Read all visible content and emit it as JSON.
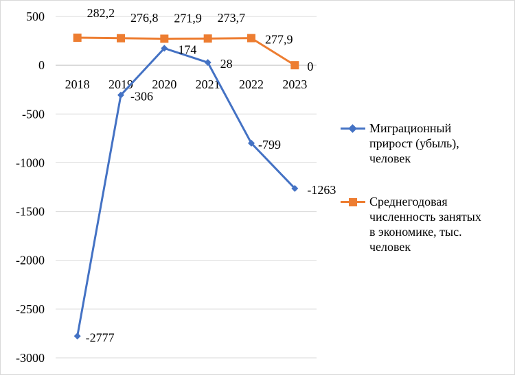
{
  "chart_data": {
    "type": "line",
    "categories": [
      "2018",
      "2019",
      "2020",
      "2021",
      "2022",
      "2023"
    ],
    "ylim": [
      -3000,
      500
    ],
    "yticks": [
      500,
      0,
      -500,
      -1000,
      -1500,
      -2000,
      -2500,
      -3000
    ],
    "ytick_labels": [
      "500",
      "0",
      "-500",
      "-1000",
      "-1500",
      "-2000",
      "-2500",
      "-3000"
    ],
    "grid": true,
    "legend_position": "right",
    "series": [
      {
        "name": "Миграционный прирост (убыль), человек",
        "name_lines": [
          "Миграционный",
          "прирост (убыль),",
          "человек"
        ],
        "values": [
          -2777,
          -306,
          174,
          28,
          -799,
          -1263
        ],
        "labels": [
          "-2777",
          "-306",
          "174",
          "28",
          "-799",
          "-1263"
        ],
        "color": "#4472C4",
        "marker": "diamond"
      },
      {
        "name": "Среднегодовая численность занятых в экономике, тыс. человек",
        "name_lines": [
          "Среднегодовая",
          "численность занятых",
          "в экономике, тыс.",
          "человек"
        ],
        "values": [
          282.2,
          276.8,
          271.9,
          273.7,
          277.9,
          0
        ],
        "labels": [
          "282,2",
          "276,8",
          "271,9",
          "273,7",
          "277,9",
          "0"
        ],
        "color": "#ED7D31",
        "marker": "square"
      }
    ]
  }
}
